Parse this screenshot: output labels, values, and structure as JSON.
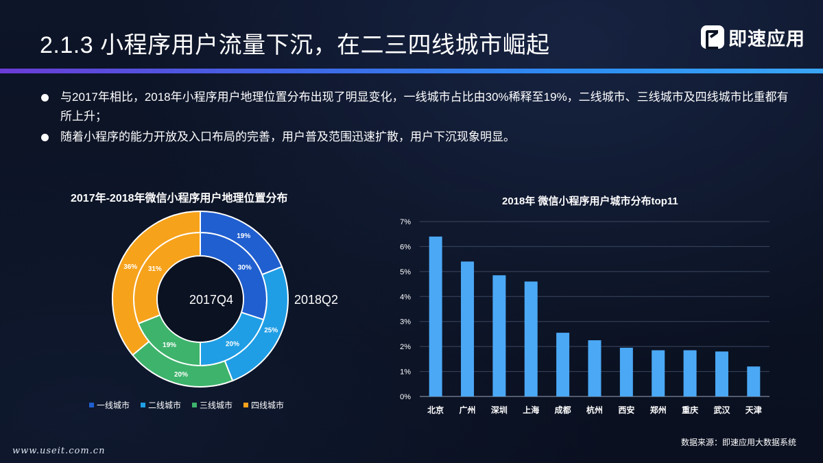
{
  "header": {
    "title": "2.1.3  小程序用户流量下沉，在二三四线城市崛起",
    "logo_text": "即速应用"
  },
  "bullets": [
    "与2017年相比，2018年小程序用户地理位置分布出现了明显变化，一线城市占比由30%稀释至19%，二线城市、三线城市及四线城市比重都有所上升；",
    "随着小程序的能力开放及入口布局的完善，用户普及范围迅速扩散，用户下沉现象明显。"
  ],
  "colors": {
    "tier1": "#1f5fd0",
    "tier2": "#1f9ee6",
    "tier3": "#3db36b",
    "tier4": "#f7a21b",
    "bar": "#4aa8f5"
  },
  "chart_data": [
    {
      "type": "pie",
      "variant": "double-donut",
      "title": "2017年-2018年微信小程序用户地理位置分布",
      "categories": [
        "一线城市",
        "二线城市",
        "三线城市",
        "四线城市"
      ],
      "series": [
        {
          "name": "2017Q4",
          "values": [
            30,
            20,
            19,
            31
          ],
          "ring": "inner"
        },
        {
          "name": "2018Q2",
          "values": [
            19,
            25,
            20,
            36
          ],
          "ring": "outer"
        }
      ],
      "legend": "bottom"
    },
    {
      "type": "bar",
      "title": "2018年 微信小程序用户城市分布top11",
      "categories": [
        "北京",
        "广州",
        "深圳",
        "上海",
        "成都",
        "杭州",
        "西安",
        "郑州",
        "重庆",
        "武汉",
        "天津"
      ],
      "values": [
        6.4,
        5.4,
        4.85,
        4.6,
        2.55,
        2.25,
        1.95,
        1.85,
        1.85,
        1.8,
        1.2
      ],
      "ylim": [
        0,
        7
      ],
      "yticks": [
        "0%",
        "1%",
        "2%",
        "3%",
        "4%",
        "5%",
        "6%",
        "7%"
      ],
      "grid": true
    }
  ],
  "source": "数据来源：即速应用大数据系统",
  "watermark": "www.useit.com.cn"
}
